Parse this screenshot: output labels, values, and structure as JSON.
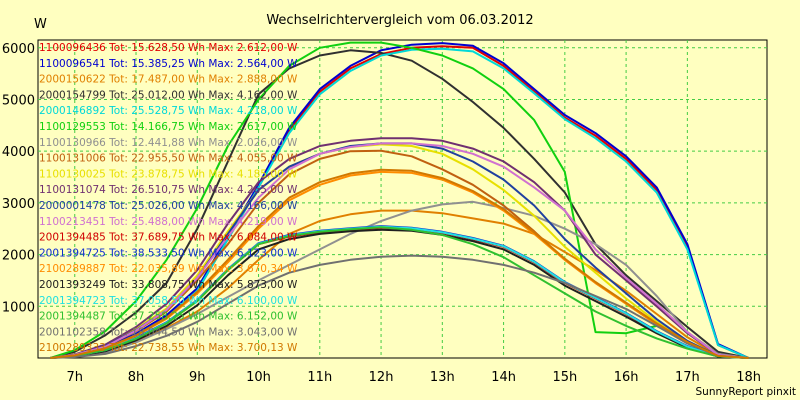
{
  "chart_data": {
    "type": "line",
    "title": "Wechselrichtervergleich vom 06.03.2012",
    "ylabel": "W",
    "xlabel": "",
    "credit": "SunnyReport pinxit",
    "x_ticks": [
      "7h",
      "8h",
      "9h",
      "10h",
      "11h",
      "12h",
      "13h",
      "14h",
      "15h",
      "16h",
      "17h",
      "18h"
    ],
    "y_ticks": [
      1000,
      2000,
      3000,
      4000,
      5000,
      6000
    ],
    "xlim": [
      6.4,
      18.3
    ],
    "ylim": [
      0,
      6150
    ],
    "grid": true,
    "legend_position": "top-left",
    "x": [
      6.6,
      7.0,
      7.5,
      8.0,
      8.5,
      9.0,
      9.5,
      10.0,
      10.5,
      11.0,
      11.5,
      12.0,
      12.5,
      13.0,
      13.5,
      14.0,
      14.5,
      15.0,
      15.5,
      16.0,
      16.5,
      17.0,
      17.5,
      18.0
    ],
    "series": [
      {
        "legend": "1100096436 Tot: 15.628,50 Wh Max: 2.612,00 W",
        "color": "#e00000",
        "values": [
          0,
          50,
          190,
          450,
          800,
          1300,
          2300,
          3300,
          4400,
          5150,
          5600,
          5880,
          6000,
          6030,
          6000,
          5650,
          5150,
          4650,
          4300,
          3850,
          3250,
          2150,
          250,
          0
        ]
      },
      {
        "legend": "1100096541 Tot: 15.385,25 Wh Max: 2.564,00 W",
        "color": "#0000d0",
        "values": [
          0,
          50,
          200,
          470,
          830,
          1350,
          2350,
          3350,
          4450,
          5200,
          5650,
          5950,
          6060,
          6090,
          6040,
          5700,
          5200,
          4700,
          4350,
          3900,
          3300,
          2200,
          270,
          0
        ]
      },
      {
        "legend": "2000150622 Tot: 17.487,00 Wh Max: 2.888,00 W",
        "color": "#e08000",
        "values": [
          0,
          30,
          120,
          320,
          580,
          900,
          1350,
          1900,
          2400,
          2650,
          2780,
          2850,
          2850,
          2800,
          2700,
          2600,
          2400,
          2050,
          1700,
          1300,
          850,
          400,
          60,
          0
        ]
      },
      {
        "legend": "2000154799 Tot: 25.012,00 Wh Max: 4.162,00 W",
        "color": "#303030",
        "values": [
          0,
          120,
          440,
          880,
          1450,
          2500,
          3800,
          5100,
          5600,
          5850,
          5950,
          5900,
          5750,
          5400,
          4950,
          4450,
          3850,
          3200,
          2200,
          1600,
          1100,
          600,
          120,
          0
        ]
      },
      {
        "legend": "2000146892 Tot: 25.528,75 Wh Max: 4.218,00 W",
        "color": "#00d8d8",
        "values": [
          0,
          40,
          190,
          440,
          780,
          1300,
          2300,
          3300,
          4350,
          5100,
          5550,
          5850,
          5960,
          5980,
          5930,
          5600,
          5120,
          4620,
          4250,
          3800,
          3200,
          2100,
          250,
          0
        ]
      },
      {
        "legend": "1100129553 Tot: 14.166,75 Wh Max: 2.617,00 W",
        "color": "#10d010",
        "values": [
          0,
          150,
          520,
          1100,
          1900,
          2900,
          4100,
          5000,
          5650,
          6000,
          6100,
          6100,
          6000,
          5850,
          5600,
          5200,
          4600,
          3600,
          500,
          480,
          620,
          300,
          60,
          0
        ]
      },
      {
        "legend": "1100130966 Tot: 12.441,88 Wh Max: 2.026,00 W",
        "color": "#909090",
        "values": [
          0,
          30,
          110,
          300,
          560,
          850,
          1180,
          1500,
          1800,
          2100,
          2400,
          2650,
          2850,
          2970,
          3020,
          2900,
          2750,
          2500,
          2200,
          1800,
          1200,
          500,
          80,
          0
        ]
      },
      {
        "legend": "1100131006 Tot: 22.955,50 Wh Max: 4.055,00 W",
        "color": "#c06010",
        "values": [
          0,
          60,
          220,
          520,
          900,
          1500,
          2200,
          3000,
          3550,
          3850,
          4000,
          4010,
          3900,
          3650,
          3350,
          2950,
          2450,
          1900,
          1450,
          1050,
          650,
          300,
          40,
          0
        ]
      },
      {
        "legend": "1100130025 Tot: 23.878,75 Wh Max: 4.185,00 W",
        "color": "#e8e000",
        "values": [
          0,
          70,
          250,
          560,
          960,
          1600,
          2450,
          3250,
          3700,
          3950,
          4080,
          4130,
          4100,
          3950,
          3650,
          3250,
          2750,
          2150,
          1650,
          1150,
          700,
          300,
          40,
          0
        ]
      },
      {
        "legend": "1100131074 Tot: 26.510,75 Wh Max: 4.265,00 W",
        "color": "#703070",
        "values": [
          0,
          70,
          260,
          600,
          1050,
          1700,
          2600,
          3400,
          3850,
          4100,
          4200,
          4250,
          4250,
          4200,
          4050,
          3800,
          3400,
          2850,
          2000,
          1500,
          1000,
          480,
          60,
          0
        ]
      },
      {
        "legend": "2000001478 Tot: 25.026,00 Wh Max: 4.166,00 W",
        "color": "#2040a0",
        "values": [
          0,
          60,
          230,
          540,
          930,
          1550,
          2400,
          3250,
          3700,
          3950,
          4100,
          4150,
          4150,
          4050,
          3800,
          3450,
          2950,
          2300,
          1750,
          1250,
          750,
          330,
          40,
          0
        ]
      },
      {
        "legend": "1100213451 Tot: 25.488,00 Wh Max: 4.219,00 W",
        "color": "#d070d0",
        "values": [
          0,
          60,
          220,
          530,
          930,
          1550,
          2350,
          3100,
          3650,
          3950,
          4080,
          4150,
          4150,
          4100,
          3950,
          3700,
          3300,
          2850,
          2100,
          1550,
          1050,
          500,
          60,
          0
        ]
      },
      {
        "legend": "2001394485 Tot: 37.689,75 Wh Max: 6.084,00 W",
        "color": "#d00000",
        "values": [
          0,
          40,
          150,
          380,
          680,
          1100,
          1700,
          2200,
          2350,
          2430,
          2480,
          2520,
          2500,
          2420,
          2300,
          2150,
          1850,
          1450,
          1150,
          850,
          500,
          220,
          30,
          0
        ]
      },
      {
        "legend": "2001394725 Tot: 38.533,50 Wh Max: 6.123,00 W",
        "color": "#1030d0",
        "values": [
          0,
          40,
          160,
          390,
          690,
          1120,
          1720,
          2220,
          2380,
          2460,
          2510,
          2550,
          2520,
          2440,
          2320,
          2170,
          1870,
          1470,
          1170,
          870,
          520,
          230,
          30,
          0
        ]
      },
      {
        "legend": "2100289887 Tot: 22.035,89 Wh Max: 3.670,34 W",
        "color": "#ff8c00",
        "values": [
          0,
          50,
          180,
          430,
          760,
          1250,
          1850,
          2500,
          3050,
          3350,
          3530,
          3600,
          3580,
          3450,
          3200,
          2850,
          2400,
          1900,
          1450,
          1050,
          650,
          300,
          40,
          0
        ]
      },
      {
        "legend": "2001393249 Tot: 33.808,75 Wh Max: 5.873,00 W",
        "color": "#202020",
        "values": [
          0,
          30,
          130,
          340,
          620,
          1020,
          1600,
          2100,
          2300,
          2400,
          2450,
          2480,
          2460,
          2380,
          2260,
          2100,
          1800,
          1400,
          1100,
          800,
          480,
          200,
          30,
          0
        ]
      },
      {
        "legend": "2001394723 Tot: 37.058,50 Wh Max: 6.100,00 W",
        "color": "#20e0e0",
        "values": [
          0,
          40,
          150,
          380,
          680,
          1110,
          1710,
          2210,
          2370,
          2450,
          2500,
          2540,
          2510,
          2430,
          2310,
          2160,
          1860,
          1460,
          1160,
          860,
          510,
          220,
          30,
          0
        ]
      },
      {
        "legend": "2001394487 Tot: 37.258,25 Wh Max: 6.152,00 W",
        "color": "#30c030",
        "values": [
          0,
          40,
          150,
          370,
          670,
          1100,
          1700,
          2200,
          2360,
          2440,
          2490,
          2530,
          2480,
          2380,
          2200,
          1950,
          1600,
          1250,
          900,
          620,
          380,
          180,
          30,
          0
        ]
      },
      {
        "legend": "2001102358 Tot: 18.044,50 Wh Max: 3.043,00 W",
        "color": "#707070",
        "values": [
          0,
          20,
          80,
          230,
          430,
          700,
          1050,
          1400,
          1650,
          1800,
          1900,
          1960,
          1980,
          1960,
          1900,
          1800,
          1650,
          1450,
          1200,
          950,
          620,
          280,
          40,
          0
        ]
      },
      {
        "legend": "2100289333 Tot: 22.738,55 Wh Max: 3.700,13 W",
        "color": "#d07800",
        "values": [
          0,
          50,
          190,
          440,
          780,
          1280,
          1900,
          2550,
          3100,
          3400,
          3570,
          3640,
          3620,
          3480,
          3230,
          2880,
          2430,
          1920,
          1470,
          1070,
          670,
          310,
          40,
          0
        ]
      }
    ]
  }
}
